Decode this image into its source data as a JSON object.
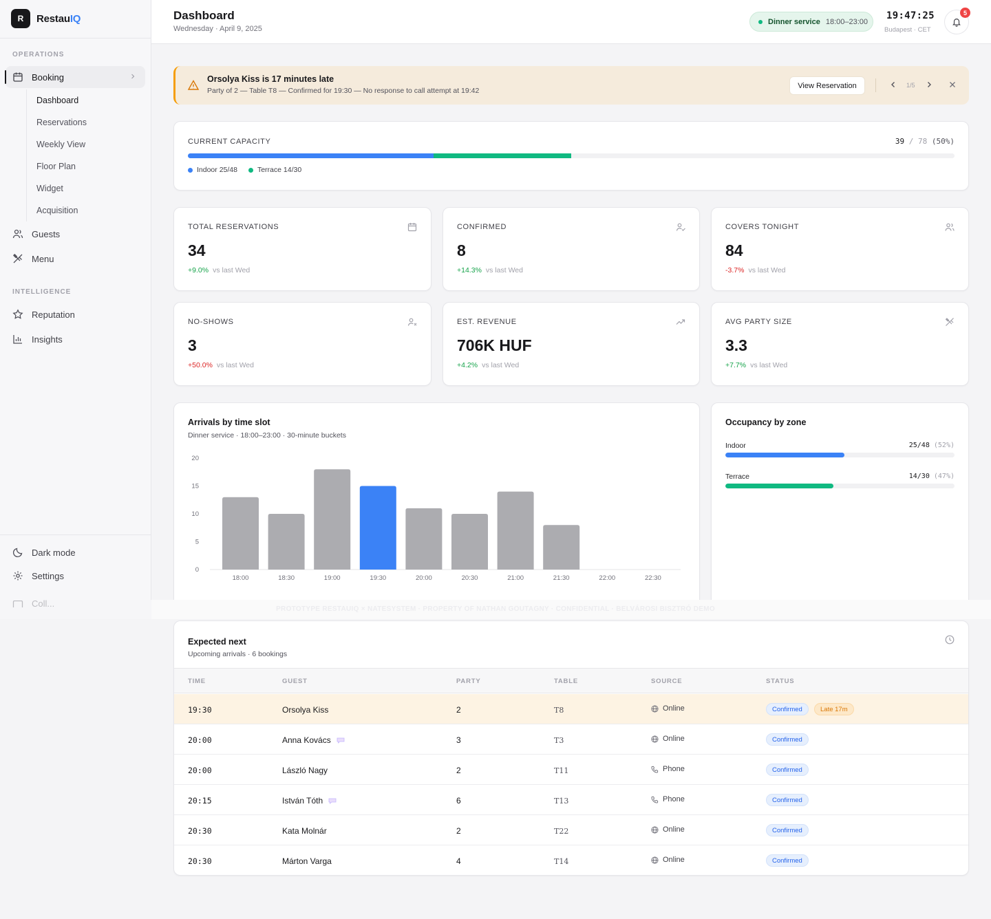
{
  "app": {
    "name_prefix": "Restau",
    "name_suffix": "IQ",
    "logo_letter": "R"
  },
  "sidebar": {
    "section_operations": "OPERATIONS",
    "booking": {
      "label": "Booking",
      "icon": "calendar-icon"
    },
    "booking_sub": [
      "Dashboard",
      "Reservations",
      "Weekly View",
      "Floor Plan",
      "Widget",
      "Acquisition"
    ],
    "guests": {
      "label": "Guests",
      "icon": "users-icon"
    },
    "menu": {
      "label": "Menu",
      "icon": "utensils-icon"
    },
    "section_intelligence": "INTELLIGENCE",
    "reputation": {
      "label": "Reputation",
      "icon": "star-icon"
    },
    "insights": {
      "label": "Insights",
      "icon": "bar-chart-icon"
    },
    "dark_mode": {
      "label": "Dark mode",
      "icon": "moon-icon"
    },
    "settings": {
      "label": "Settings",
      "icon": "gear-icon"
    },
    "truncated": {
      "label": "Coll...",
      "icon": "panel-icon"
    }
  },
  "header": {
    "title": "Dashboard",
    "date": "Wednesday · April 9, 2025",
    "service_label": "Dinner service",
    "service_hours": "18:00–23:00",
    "clock": "19:47:25",
    "timezone": "Budapest · CET",
    "notifications": "5"
  },
  "alert": {
    "title": "Orsolya Kiss is 17 minutes late",
    "description": "Party of 2 — Table T8 — Confirmed for 19:30 — No response to call attempt at 19:42",
    "button": "View Reservation",
    "pager": "1/5"
  },
  "capacity": {
    "label": "CURRENT CAPACITY",
    "current": "39",
    "sep": " / ",
    "total": "78",
    "pct": "(50%)",
    "indoor_legend": "Indoor 25/48",
    "terrace_legend": "Terrace 14/30",
    "indoor_share": 0.3205,
    "terrace_share": 0.1795,
    "indoor_color": "#3b82f6",
    "terrace_color": "#10b981"
  },
  "stats": [
    {
      "label": "TOTAL RESERVATIONS",
      "value": "34",
      "delta": "+9.0%",
      "vs": "vs last Wed",
      "icon": "calendar-icon"
    },
    {
      "label": "CONFIRMED",
      "value": "8",
      "delta": "+14.3%",
      "vs": "vs last Wed",
      "icon": "user-check-icon"
    },
    {
      "label": "COVERS TONIGHT",
      "value": "84",
      "delta": "-3.7%",
      "vs": "vs last Wed",
      "icon": "users-icon"
    },
    {
      "label": "NO-SHOWS",
      "value": "3",
      "delta": "+50.0%",
      "vs": "vs last Wed",
      "icon": "user-x-icon"
    },
    {
      "label": "EST. REVENUE",
      "value": "706K HUF",
      "delta": "+4.2%",
      "vs": "vs last Wed",
      "icon": "trending-up-icon"
    },
    {
      "label": "AVG PARTY SIZE",
      "value": "3.3",
      "delta": "+7.7%",
      "vs": "vs last Wed",
      "icon": "utensils-icon"
    }
  ],
  "arrivals": {
    "title": "Arrivals by time slot",
    "subtitle": "Dinner service · 18:00–23:00 · 30-minute buckets"
  },
  "chart_data": {
    "type": "bar",
    "categories": [
      "18:00",
      "18:30",
      "19:00",
      "19:30",
      "20:00",
      "20:30",
      "21:00",
      "21:30",
      "22:00",
      "22:30"
    ],
    "values": [
      13,
      10,
      18,
      15,
      11,
      10,
      14,
      8,
      0,
      0
    ],
    "highlight_index": 3,
    "ylim": [
      0,
      20
    ],
    "yticks": [
      0,
      5,
      10,
      15,
      20
    ],
    "bar_color": "#acacb0",
    "highlight_color": "#3b82f6",
    "grid": false
  },
  "occupancy": {
    "title": "Occupancy by zone",
    "zones": [
      {
        "name": "Indoor",
        "value": "25/48",
        "pct": "(52%)",
        "fraction": 0.52,
        "color": "#3b82f6"
      },
      {
        "name": "Terrace",
        "value": "14/30",
        "pct": "(47%)",
        "fraction": 0.47,
        "color": "#10b981"
      }
    ]
  },
  "watermark": "PROTOTYPE RESTAUIQ × NATESYSTEM · PROPERTY OF NATHAN GOUTAGNY · CONFIDENTIAL · BELVÁROSI BISZTRÓ DEMO",
  "expected": {
    "title": "Expected next",
    "subtitle": "Upcoming arrivals · 6 bookings",
    "columns": [
      "TIME",
      "GUEST",
      "PARTY",
      "TABLE",
      "SOURCE",
      "STATUS"
    ],
    "rows": [
      {
        "time": "19:30",
        "guest": "Orsolya Kiss",
        "party": "2",
        "table": "T8",
        "source": "Online",
        "status": "Confirmed",
        "late": "Late 17m",
        "note": false
      },
      {
        "time": "20:00",
        "guest": "Anna Kovács",
        "party": "3",
        "table": "T3",
        "source": "Online",
        "status": "Confirmed",
        "note": true
      },
      {
        "time": "20:00",
        "guest": "László Nagy",
        "party": "2",
        "table": "T11",
        "source": "Phone",
        "status": "Confirmed",
        "note": false
      },
      {
        "time": "20:15",
        "guest": "István Tóth",
        "party": "6",
        "table": "T13",
        "source": "Phone",
        "status": "Confirmed",
        "note": true
      },
      {
        "time": "20:30",
        "guest": "Kata Molnár",
        "party": "2",
        "table": "T22",
        "source": "Online",
        "status": "Confirmed",
        "note": false
      },
      {
        "time": "20:30",
        "guest": "Márton Varga",
        "party": "4",
        "table": "T14",
        "source": "Online",
        "status": "Confirmed",
        "note": false
      }
    ]
  }
}
